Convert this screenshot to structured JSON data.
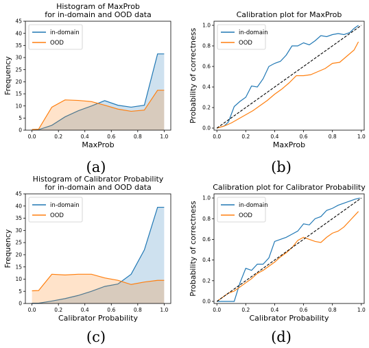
{
  "colors": {
    "in_domain": "#1f77b4",
    "ood": "#ff7f0e",
    "diagonal": "#000000"
  },
  "panel_labels": [
    "(a)",
    "(b)",
    "(c)",
    "(d)"
  ],
  "chart_data": [
    {
      "type": "area",
      "title": "Histogram of MaxProb\nfor in-domain and OOD data",
      "xlabel": "MaxProb",
      "ylabel": "Frequency",
      "xlim": [
        -0.05,
        1.05
      ],
      "ylim": [
        0,
        45
      ],
      "xticks": [
        "0.0",
        "0.2",
        "0.4",
        "0.6",
        "0.8",
        "1.0"
      ],
      "yticks": [
        "0",
        "5",
        "10",
        "15",
        "20",
        "25",
        "30",
        "35",
        "40",
        "45"
      ],
      "legend": "top-left",
      "series": [
        {
          "name": "in-domain",
          "x": [
            0.0,
            0.05,
            0.15,
            0.25,
            0.35,
            0.45,
            0.55,
            0.65,
            0.75,
            0.85,
            0.95,
            1.0
          ],
          "y": [
            0.1,
            0.2,
            2.0,
            5.5,
            8.0,
            10.0,
            12.2,
            10.3,
            9.5,
            10.3,
            31.5,
            31.5
          ]
        },
        {
          "name": "OOD",
          "x": [
            0.0,
            0.05,
            0.15,
            0.25,
            0.35,
            0.45,
            0.55,
            0.65,
            0.75,
            0.85,
            0.95,
            1.0
          ],
          "y": [
            0.3,
            0.4,
            9.5,
            12.5,
            12.3,
            11.8,
            10.3,
            8.7,
            7.8,
            8.3,
            16.5,
            16.5
          ]
        }
      ]
    },
    {
      "type": "line",
      "title": "Calibration plot for MaxProb",
      "xlabel": "MaxProb",
      "ylabel": "Probability of correctness",
      "xlim": [
        -0.02,
        1.02
      ],
      "ylim": [
        -0.02,
        1.04
      ],
      "xticks": [
        "0.0",
        "0.2",
        "0.4",
        "0.6",
        "0.8",
        "1.0"
      ],
      "yticks": [
        "0.0",
        "0.2",
        "0.4",
        "0.6",
        "0.8",
        "1.0"
      ],
      "legend": "top-left",
      "diagonal": true,
      "series": [
        {
          "name": "in-domain",
          "x": [
            0.0,
            0.05,
            0.08,
            0.12,
            0.16,
            0.2,
            0.24,
            0.28,
            0.32,
            0.36,
            0.4,
            0.44,
            0.48,
            0.52,
            0.56,
            0.6,
            0.64,
            0.68,
            0.72,
            0.76,
            0.8,
            0.84,
            0.88,
            0.92,
            0.95,
            0.98
          ],
          "y": [
            0.0,
            0.02,
            0.06,
            0.21,
            0.26,
            0.3,
            0.41,
            0.4,
            0.48,
            0.6,
            0.63,
            0.65,
            0.71,
            0.8,
            0.8,
            0.83,
            0.81,
            0.85,
            0.9,
            0.89,
            0.91,
            0.92,
            0.91,
            0.93,
            0.97,
            1.0
          ]
        },
        {
          "name": "OOD",
          "x": [
            0.0,
            0.05,
            0.1,
            0.15,
            0.2,
            0.25,
            0.3,
            0.35,
            0.4,
            0.45,
            0.5,
            0.55,
            0.6,
            0.65,
            0.7,
            0.75,
            0.8,
            0.85,
            0.9,
            0.95,
            0.98
          ],
          "y": [
            0.0,
            0.02,
            0.05,
            0.09,
            0.13,
            0.17,
            0.22,
            0.27,
            0.33,
            0.38,
            0.44,
            0.51,
            0.51,
            0.52,
            0.55,
            0.58,
            0.63,
            0.64,
            0.7,
            0.76,
            0.84
          ]
        }
      ]
    },
    {
      "type": "area",
      "title": "Histogram of Calibrator Probability\nfor in-domain and OOD data",
      "xlabel": "Calibrator Probability",
      "ylabel": "Frequency",
      "xlim": [
        -0.05,
        1.05
      ],
      "ylim": [
        0,
        45
      ],
      "xticks": [
        "0.0",
        "0.2",
        "0.4",
        "0.6",
        "0.8",
        "1.0"
      ],
      "yticks": [
        "0",
        "5",
        "10",
        "15",
        "20",
        "25",
        "30",
        "35",
        "40",
        "45"
      ],
      "legend": "top-left",
      "series": [
        {
          "name": "in-domain",
          "x": [
            0.0,
            0.05,
            0.15,
            0.25,
            0.35,
            0.45,
            0.55,
            0.65,
            0.75,
            0.85,
            0.95,
            1.0
          ],
          "y": [
            0.1,
            0.1,
            1.0,
            2.0,
            3.3,
            5.0,
            7.0,
            8.0,
            12.0,
            22.0,
            39.5,
            39.5
          ]
        },
        {
          "name": "OOD",
          "x": [
            0.0,
            0.05,
            0.15,
            0.25,
            0.35,
            0.45,
            0.55,
            0.65,
            0.75,
            0.85,
            0.95,
            1.0
          ],
          "y": [
            5.2,
            5.3,
            12.0,
            11.7,
            12.0,
            12.0,
            10.5,
            9.5,
            7.8,
            8.8,
            9.5,
            9.5
          ]
        }
      ]
    },
    {
      "type": "line",
      "title": "Calibration plot for Calibrator Probability",
      "xlabel": "Calibrator Probability",
      "ylabel": "Probability of correctness",
      "xlim": [
        -0.02,
        1.02
      ],
      "ylim": [
        -0.02,
        1.04
      ],
      "xticks": [
        "0.0",
        "0.2",
        "0.4",
        "0.6",
        "0.8",
        "1.0"
      ],
      "yticks": [
        "0.0",
        "0.2",
        "0.4",
        "0.6",
        "0.8",
        "1.0"
      ],
      "legend": "top-left",
      "diagonal": true,
      "series": [
        {
          "name": "in-domain",
          "x": [
            0.0,
            0.04,
            0.08,
            0.12,
            0.16,
            0.2,
            0.24,
            0.28,
            0.32,
            0.36,
            0.4,
            0.44,
            0.48,
            0.52,
            0.56,
            0.6,
            0.64,
            0.68,
            0.72,
            0.76,
            0.8,
            0.84,
            0.88,
            0.92,
            0.96,
            0.99
          ],
          "y": [
            0.0,
            0.0,
            0.0,
            0.0,
            0.18,
            0.32,
            0.3,
            0.36,
            0.36,
            0.42,
            0.58,
            0.6,
            0.62,
            0.65,
            0.68,
            0.75,
            0.74,
            0.8,
            0.82,
            0.88,
            0.9,
            0.93,
            0.95,
            0.97,
            0.99,
            1.0
          ]
        },
        {
          "name": "OOD",
          "x": [
            0.0,
            0.04,
            0.08,
            0.12,
            0.16,
            0.2,
            0.24,
            0.28,
            0.32,
            0.36,
            0.4,
            0.44,
            0.48,
            0.52,
            0.56,
            0.6,
            0.64,
            0.68,
            0.72,
            0.76,
            0.8,
            0.84,
            0.88,
            0.92,
            0.96,
            0.98
          ],
          "y": [
            0.0,
            0.04,
            0.08,
            0.1,
            0.14,
            0.18,
            0.22,
            0.27,
            0.3,
            0.34,
            0.38,
            0.43,
            0.47,
            0.52,
            0.59,
            0.62,
            0.6,
            0.58,
            0.57,
            0.62,
            0.66,
            0.68,
            0.72,
            0.78,
            0.84,
            0.87
          ]
        }
      ]
    }
  ]
}
